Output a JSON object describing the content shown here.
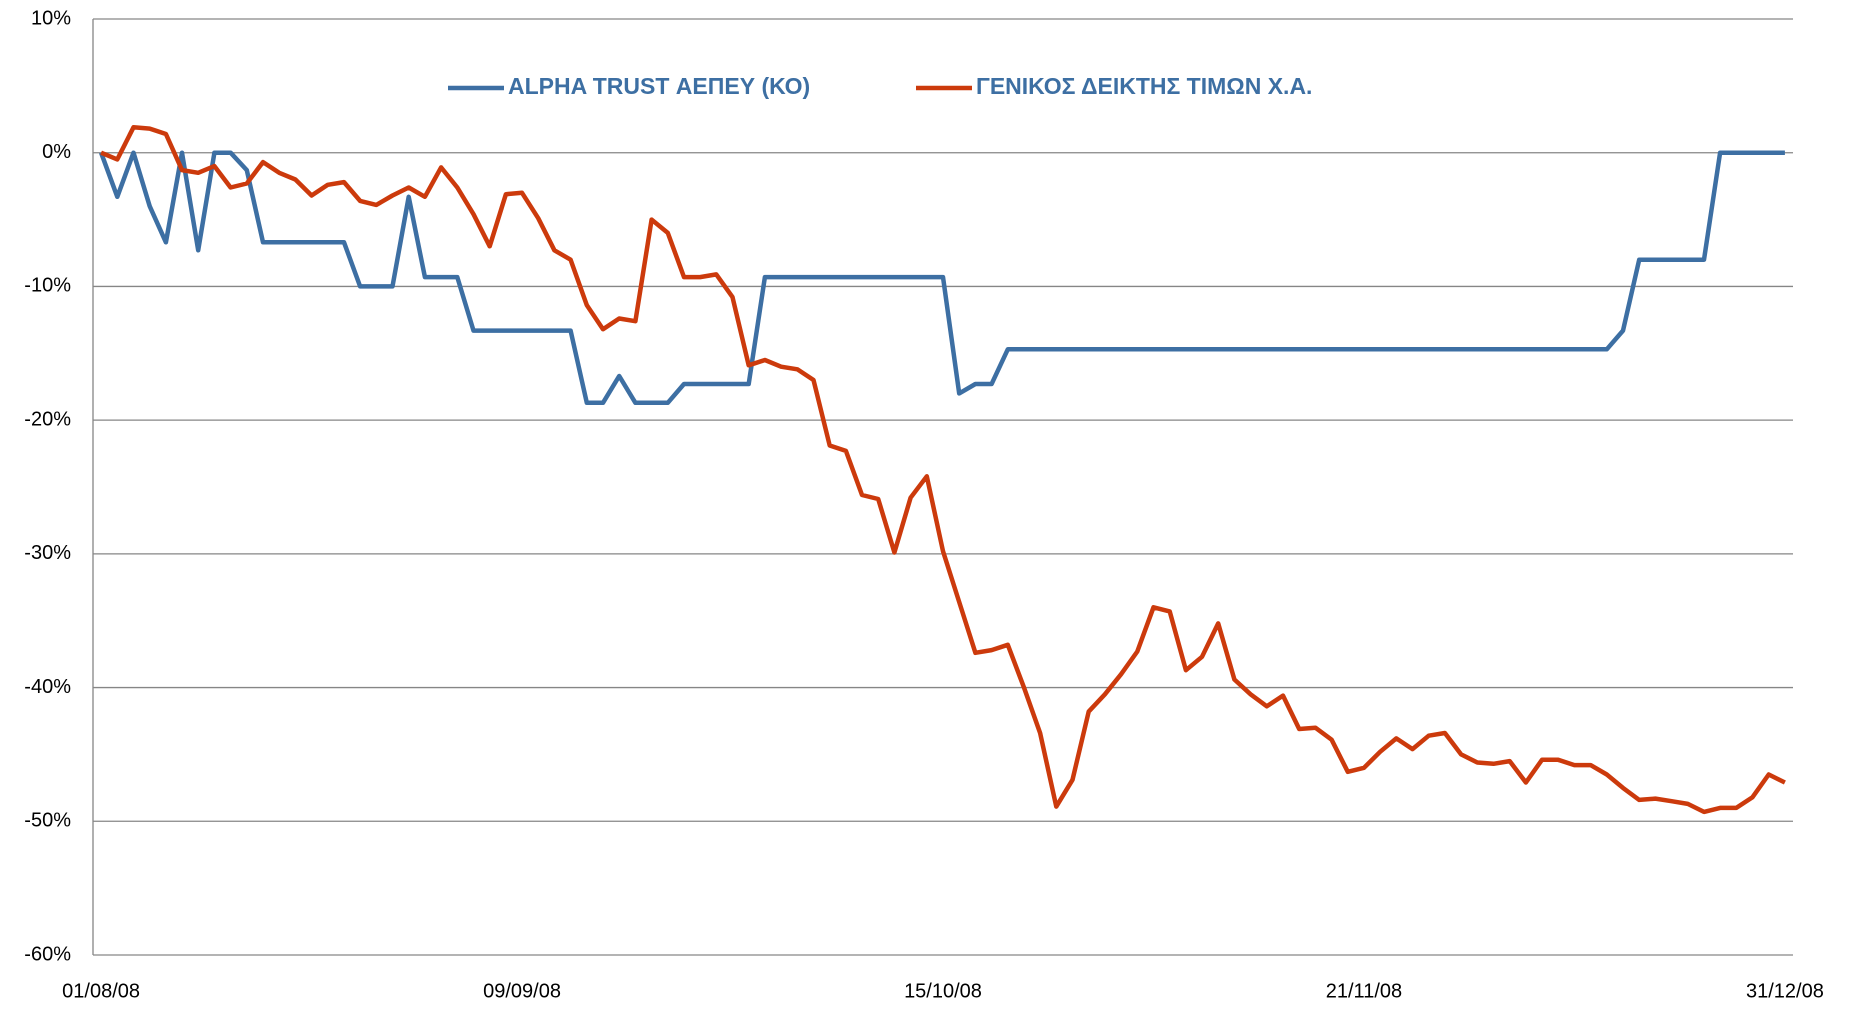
{
  "chart_data": {
    "type": "line",
    "categories": [
      "01/08/08",
      null,
      null,
      null,
      null,
      null,
      null,
      null,
      null,
      null,
      null,
      null,
      null,
      null,
      null,
      null,
      null,
      null,
      null,
      null,
      null,
      null,
      null,
      null,
      null,
      null,
      "09/09/08",
      null,
      null,
      null,
      null,
      null,
      null,
      null,
      null,
      null,
      null,
      null,
      null,
      null,
      null,
      null,
      null,
      null,
      null,
      null,
      null,
      null,
      null,
      null,
      null,
      null,
      "15/10/08",
      null,
      null,
      null,
      null,
      null,
      null,
      null,
      null,
      null,
      null,
      null,
      null,
      null,
      null,
      null,
      null,
      null,
      null,
      null,
      null,
      null,
      null,
      null,
      null,
      null,
      "21/11/08",
      null,
      null,
      null,
      null,
      null,
      null,
      null,
      null,
      null,
      null,
      null,
      null,
      null,
      null,
      null,
      null,
      null,
      null,
      null,
      null,
      null,
      null,
      null,
      null,
      null,
      "31/12/08"
    ],
    "series": [
      {
        "name": "ALPHA TRUST ΑΕΠΕΥ (ΚΟ)",
        "color": "#3d6fa3",
        "values": [
          0,
          -3.3,
          0,
          -4,
          -6.7,
          0,
          -7.3,
          0,
          0,
          -1.3,
          -6.7,
          -6.7,
          -6.7,
          -6.7,
          -6.7,
          -6.7,
          -10,
          -10,
          -10,
          -3.3,
          -9.3,
          -9.3,
          -9.3,
          -13.3,
          -13.3,
          -13.3,
          -13.3,
          -13.3,
          -13.3,
          -13.3,
          -18.7,
          -18.7,
          -16.7,
          -18.7,
          -18.7,
          -18.7,
          -17.3,
          -17.3,
          -17.3,
          -17.3,
          -17.3,
          -9.3,
          -9.3,
          -9.3,
          -9.3,
          -9.3,
          -9.3,
          -9.3,
          -9.3,
          -9.3,
          -9.3,
          -9.3,
          -9.3,
          -18,
          -17.3,
          -17.3,
          -14.7,
          -14.7,
          -14.7,
          -14.7,
          -14.7,
          -14.7,
          -14.7,
          -14.7,
          -14.7,
          -14.7,
          -14.7,
          -14.7,
          -14.7,
          -14.7,
          -14.7,
          -14.7,
          -14.7,
          -14.7,
          -14.7,
          -14.7,
          -14.7,
          -14.7,
          -14.7,
          -14.7,
          -14.7,
          -14.7,
          -14.7,
          -14.7,
          -14.7,
          -14.7,
          -14.7,
          -14.7,
          -14.7,
          -14.7,
          -14.7,
          -14.7,
          -14.7,
          -14.7,
          -13.3,
          -8,
          -8,
          -8,
          -8,
          -8,
          0,
          0,
          0,
          0,
          0
        ]
      },
      {
        "name": "ΓΕΝΙΚΟΣ ΔΕΙΚΤΗΣ ΤΙΜΩΝ Χ.Α.",
        "color": "#cc3a0c",
        "values": [
          0,
          -0.5,
          1.9,
          1.8,
          1.4,
          -1.3,
          -1.5,
          -1,
          -2.6,
          -2.3,
          -0.7,
          -1.5,
          -2,
          -3.2,
          -2.4,
          -2.2,
          -3.6,
          -3.9,
          -3.2,
          -2.6,
          -3.3,
          -1.1,
          -2.6,
          -4.6,
          -7,
          -3.1,
          -3,
          -4.9,
          -7.3,
          -8,
          -11.4,
          -13.2,
          -12.4,
          -12.6,
          -5,
          -6,
          -9.3,
          -9.3,
          -9.1,
          -10.8,
          -15.9,
          -15.5,
          -16,
          -16.2,
          -17,
          -21.9,
          -22.3,
          -25.6,
          -25.9,
          -29.9,
          -25.8,
          -24.2,
          -29.8,
          -33.6,
          -37.4,
          -37.2,
          -36.8,
          -40,
          -43.4,
          -48.9,
          -46.9,
          -41.8,
          -40.5,
          -39,
          -37.3,
          -34,
          -34.3,
          -38.7,
          -37.7,
          -35.2,
          -39.4,
          -40.5,
          -41.4,
          -40.6,
          -43.1,
          -43,
          -43.9,
          -46.3,
          -46,
          -44.8,
          -43.8,
          -44.6,
          -43.6,
          -43.4,
          -45,
          -45.6,
          -45.7,
          -45.5,
          -47.1,
          -45.4,
          -45.4,
          -45.8,
          -45.8,
          -46.5,
          -47.5,
          -48.4,
          -48.3,
          -48.5,
          -48.7,
          -49.3,
          -49,
          -49,
          -48.2,
          -46.5,
          -47.1
        ]
      }
    ],
    "ylim": [
      -60,
      10
    ],
    "yticks": [
      {
        "value": -60,
        "label": "-60%"
      },
      {
        "value": -50,
        "label": "-50%"
      },
      {
        "value": -40,
        "label": "-40%"
      },
      {
        "value": -30,
        "label": "-30%"
      },
      {
        "value": -20,
        "label": "-20%"
      },
      {
        "value": -10,
        "label": "-10%"
      },
      {
        "value": 0,
        "label": "0%"
      },
      {
        "value": 10,
        "label": "10%"
      }
    ],
    "grid": true,
    "legend": "top"
  }
}
